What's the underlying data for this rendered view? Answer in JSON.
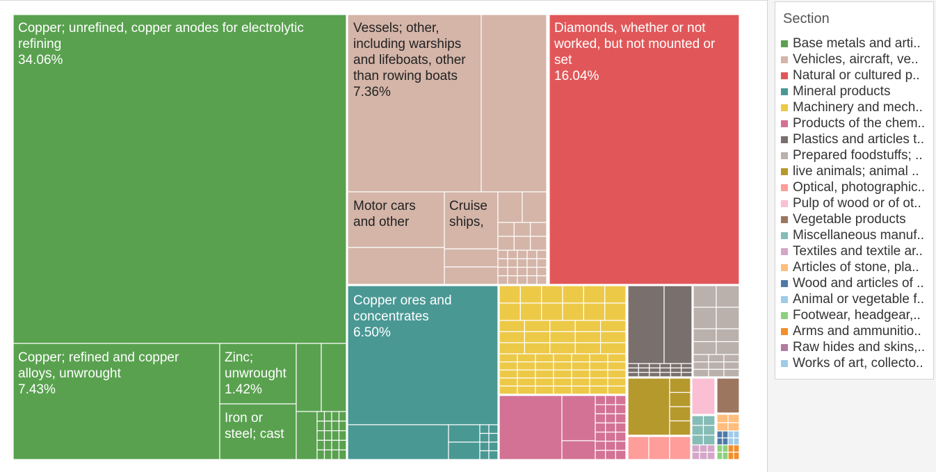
{
  "chart_data": {
    "type": "treemap",
    "legend": {
      "title": "Section",
      "placement": "right",
      "items": [
        {
          "label": "Base metals and arti..",
          "color": "#59a14f"
        },
        {
          "label": "Vehicles, aircraft, ve..",
          "color": "#d4b5a8"
        },
        {
          "label": "Natural or cultured p..",
          "color": "#e15759"
        },
        {
          "label": "Mineral products",
          "color": "#499894"
        },
        {
          "label": "Machinery and mech..",
          "color": "#edc948"
        },
        {
          "label": "Products of the chem..",
          "color": "#d37295"
        },
        {
          "label": "Plastics and articles t..",
          "color": "#79706e"
        },
        {
          "label": "Prepared foodstuffs; ..",
          "color": "#bab0ac"
        },
        {
          "label": "live animals; animal ..",
          "color": "#b6992d"
        },
        {
          "label": "Optical, photographic..",
          "color": "#ff9d9a"
        },
        {
          "label": "Pulp of wood or of ot..",
          "color": "#fabfd2"
        },
        {
          "label": "Vegetable products",
          "color": "#9d7660"
        },
        {
          "label": "Miscellaneous manuf..",
          "color": "#86bcb6"
        },
        {
          "label": "Textiles and textile ar..",
          "color": "#d4a6c8"
        },
        {
          "label": "Articles of stone, pla..",
          "color": "#ffbe7d"
        },
        {
          "label": "Wood and articles of ..",
          "color": "#4e79a7"
        },
        {
          "label": "Animal or vegetable f..",
          "color": "#a0cbe8"
        },
        {
          "label": "Footwear, headgear,..",
          "color": "#8cd17d"
        },
        {
          "label": "Arms and ammunitio..",
          "color": "#f28e2b"
        },
        {
          "label": "Raw hides and skins,..",
          "color": "#b07aa1"
        },
        {
          "label": "Works of art, collecto..",
          "color": "#a0cbe8"
        }
      ]
    },
    "labeled_items": [
      {
        "section": "Base metals and arti..",
        "name_lines": [
          "Copper; unrefined, copper anodes for electrolytic",
          "refining"
        ],
        "value": "34.06%"
      },
      {
        "section": "Base metals and arti..",
        "name_lines": [
          "Copper; refined and copper",
          "alloys, unwrought"
        ],
        "value": "7.43%"
      },
      {
        "section": "Base metals and arti..",
        "name_lines": [
          "Zinc;",
          "unwrought"
        ],
        "value": "1.42%"
      },
      {
        "section": "Base metals and arti..",
        "name_lines": [
          "Iron or",
          "steel; cast"
        ],
        "value": ""
      },
      {
        "section": "Vehicles, aircraft, ve..",
        "name_lines": [
          "Vessels; other,",
          "including warships",
          "and lifeboats, other",
          "than rowing boats"
        ],
        "value": "7.36%"
      },
      {
        "section": "Vehicles, aircraft, ve..",
        "name_lines": [
          "Motor cars",
          "and other"
        ],
        "value": ""
      },
      {
        "section": "Vehicles, aircraft, ve..",
        "name_lines": [
          "Cruise",
          "ships,"
        ],
        "value": ""
      },
      {
        "section": "Natural or cultured p..",
        "name_lines": [
          "Diamonds, whether or not",
          "worked, but not mounted or",
          "set"
        ],
        "value": "16.04%"
      },
      {
        "section": "Mineral products",
        "name_lines": [
          "Copper ores and",
          "concentrates"
        ],
        "value": "6.50%"
      }
    ]
  }
}
